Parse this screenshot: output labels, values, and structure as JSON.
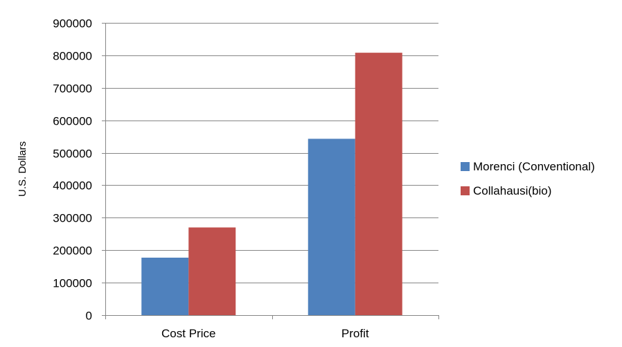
{
  "chart_data": {
    "type": "bar",
    "title": "",
    "xlabel": "",
    "ylabel": "U.S. Dollars",
    "categories": [
      "Cost Price",
      "Profit"
    ],
    "series": [
      {
        "name": "Morenci (Conventional)",
        "color": "#4f81bd",
        "values": [
          177000,
          543000
        ]
      },
      {
        "name": "Collahausi(bio)",
        "color": "#c0504d",
        "values": [
          270000,
          808000
        ]
      }
    ],
    "ylim": [
      0,
      900000
    ],
    "yticks": [
      0,
      100000,
      200000,
      300000,
      400000,
      500000,
      600000,
      700000,
      800000,
      900000
    ],
    "grid": true,
    "legend_position": "right"
  }
}
